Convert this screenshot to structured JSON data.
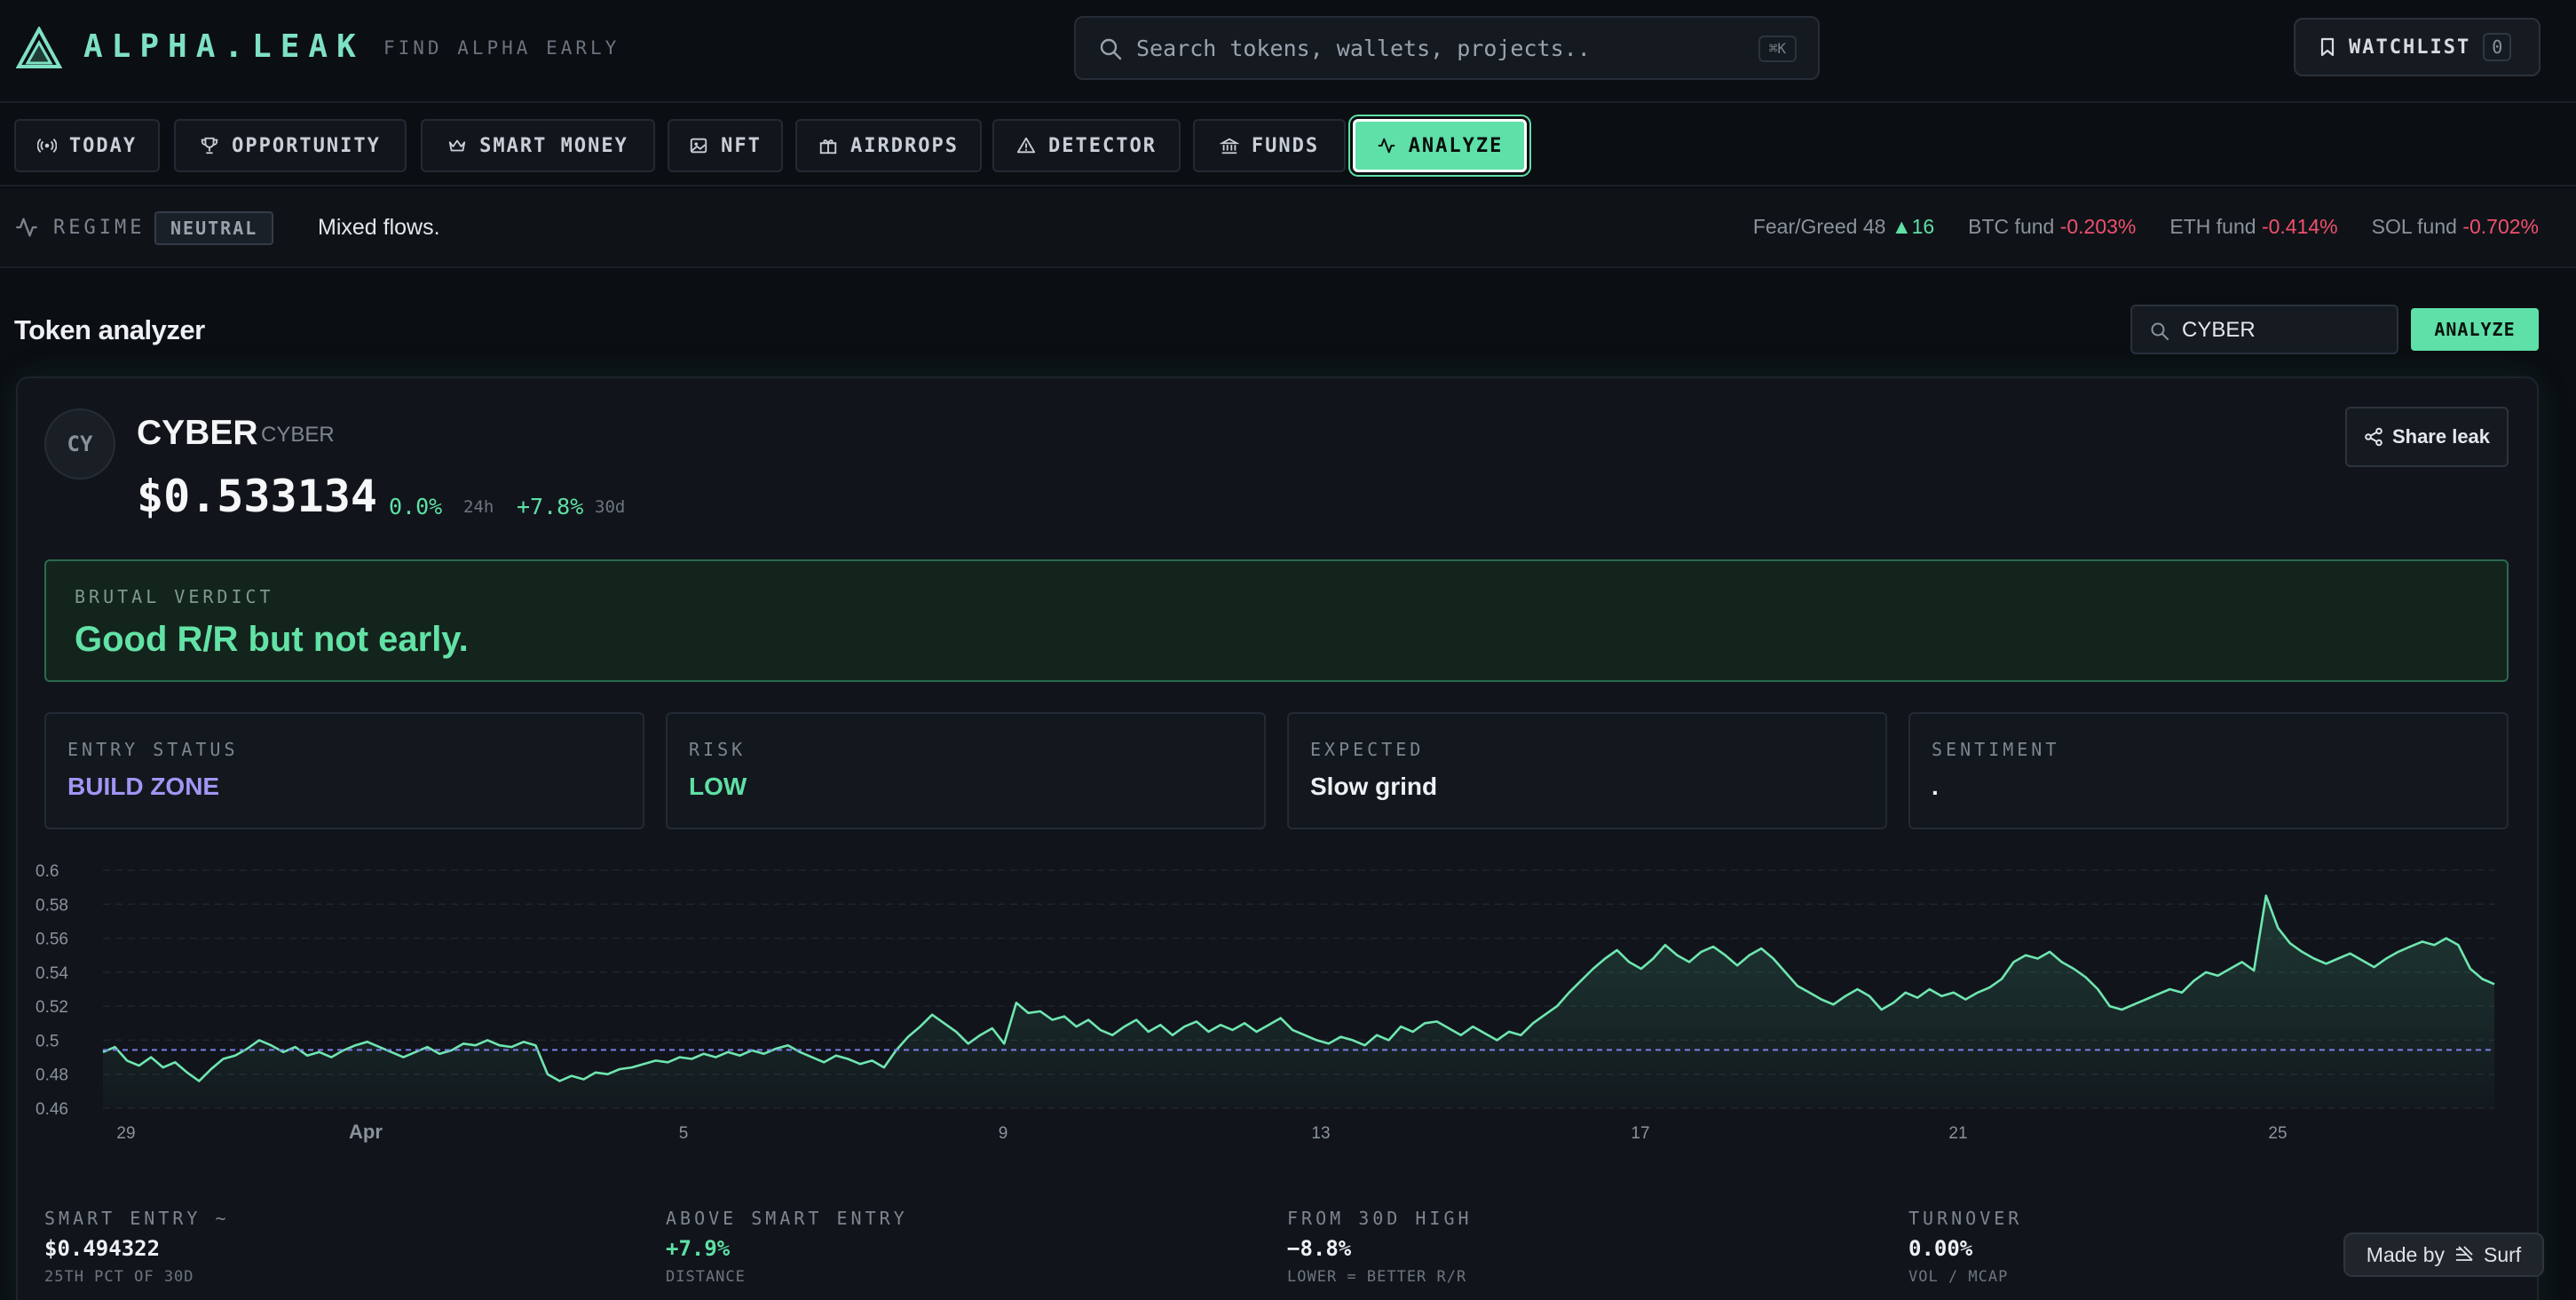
{
  "header": {
    "brand": "ALPHA.LEAK",
    "tagline": "FIND ALPHA EARLY",
    "search_placeholder": "Search tokens, wallets, projects..",
    "search_shortcut": "⌘K",
    "watchlist_label": "WATCHLIST",
    "watchlist_count": "0"
  },
  "nav": {
    "items": [
      {
        "label": "TODAY",
        "icon": "broadcast-icon"
      },
      {
        "label": "OPPORTUNITY",
        "icon": "trophy-icon"
      },
      {
        "label": "SMART MONEY",
        "icon": "crown-icon"
      },
      {
        "label": "NFT",
        "icon": "image-icon"
      },
      {
        "label": "AIRDROPS",
        "icon": "gift-icon"
      },
      {
        "label": "DETECTOR",
        "icon": "alert-triangle-icon"
      },
      {
        "label": "FUNDS",
        "icon": "bank-icon"
      },
      {
        "label": "ANALYZE",
        "icon": "activity-icon",
        "active": true
      }
    ]
  },
  "regime": {
    "label": "REGIME",
    "badge": "NEUTRAL",
    "text": "Mixed flows.",
    "fear_greed_label": "Fear/Greed 48",
    "fear_greed_delta": "▲16",
    "btc_label": "BTC fund",
    "btc_value": "-0.203%",
    "eth_label": "ETH fund",
    "eth_value": "-0.414%",
    "sol_label": "SOL fund",
    "sol_value": "-0.702%"
  },
  "analyzer": {
    "title": "Token analyzer",
    "input_value": "CYBER",
    "button_label": "ANALYZE"
  },
  "token": {
    "avatar": "CY",
    "name": "CYBER",
    "symbol": "CYBER",
    "price": "$0.533134",
    "change_24h": "0.0%",
    "change_24h_label": "24h",
    "change_30d": "+7.8%",
    "change_30d_label": "30d",
    "share_label": "Share leak"
  },
  "verdict": {
    "label": "BRUTAL VERDICT",
    "text": "Good R/R but not early."
  },
  "stats": [
    {
      "label": "ENTRY STATUS",
      "value": "BUILD ZONE",
      "tone": "purple"
    },
    {
      "label": "RISK",
      "value": "LOW",
      "tone": "green"
    },
    {
      "label": "EXPECTED",
      "value": "Slow grind",
      "tone": "default"
    },
    {
      "label": "SENTIMENT",
      "value": ".",
      "tone": "default"
    }
  ],
  "bottom_stats": [
    {
      "label": "SMART ENTRY ~",
      "value": "$0.494322",
      "sub": "25TH PCT OF 30D",
      "tone": "default"
    },
    {
      "label": "ABOVE SMART ENTRY",
      "value": "+7.9%",
      "sub": "DISTANCE",
      "tone": "green"
    },
    {
      "label": "FROM 30D HIGH",
      "value": "−8.8%",
      "sub": "LOWER = BETTER R/R",
      "tone": "default"
    },
    {
      "label": "TURNOVER",
      "value": "0.00%",
      "sub": "VOL / MCAP",
      "tone": "default"
    }
  ],
  "made_by": {
    "label": "Made by",
    "brand": "Surf"
  },
  "colors": {
    "accent": "#5ee0a8",
    "negative": "#f0506e",
    "purple": "#a195f5"
  },
  "chart_data": {
    "type": "area",
    "ylim": [
      0.46,
      0.6
    ],
    "y_ticks": [
      0.6,
      0.58,
      0.56,
      0.54,
      0.52,
      0.5,
      0.48,
      0.46
    ],
    "x_ticks": [
      "29",
      "Apr",
      "5",
      "9",
      "13",
      "17",
      "21",
      "25"
    ],
    "reference_line": 0.4943,
    "series": [
      {
        "x_start": "Mar 28",
        "x_end": "Apr 27",
        "values": [
          0.493,
          0.496,
          0.488,
          0.485,
          0.49,
          0.484,
          0.487,
          0.481,
          0.476,
          0.483,
          0.489,
          0.491,
          0.495,
          0.5,
          0.497,
          0.493,
          0.496,
          0.491,
          0.493,
          0.49,
          0.494,
          0.497,
          0.499,
          0.496,
          0.493,
          0.49,
          0.493,
          0.496,
          0.492,
          0.494,
          0.498,
          0.497,
          0.5,
          0.497,
          0.496,
          0.499,
          0.497,
          0.48,
          0.476,
          0.479,
          0.477,
          0.481,
          0.48,
          0.483,
          0.484,
          0.486,
          0.488,
          0.487,
          0.49,
          0.489,
          0.492,
          0.49,
          0.493,
          0.491,
          0.494,
          0.492,
          0.495,
          0.497,
          0.493,
          0.49,
          0.487,
          0.491,
          0.489,
          0.486,
          0.488,
          0.484,
          0.494,
          0.502,
          0.508,
          0.515,
          0.51,
          0.505,
          0.498,
          0.503,
          0.507,
          0.498,
          0.522,
          0.516,
          0.517,
          0.512,
          0.514,
          0.508,
          0.512,
          0.506,
          0.503,
          0.508,
          0.512,
          0.505,
          0.509,
          0.503,
          0.508,
          0.511,
          0.505,
          0.509,
          0.506,
          0.51,
          0.505,
          0.509,
          0.513,
          0.506,
          0.503,
          0.5,
          0.498,
          0.502,
          0.5,
          0.497,
          0.503,
          0.5,
          0.508,
          0.505,
          0.51,
          0.511,
          0.507,
          0.503,
          0.508,
          0.504,
          0.5,
          0.505,
          0.503,
          0.51,
          0.515,
          0.52,
          0.528,
          0.535,
          0.542,
          0.548,
          0.553,
          0.546,
          0.542,
          0.548,
          0.556,
          0.55,
          0.546,
          0.552,
          0.555,
          0.55,
          0.544,
          0.55,
          0.554,
          0.548,
          0.54,
          0.532,
          0.528,
          0.524,
          0.521,
          0.526,
          0.53,
          0.526,
          0.518,
          0.522,
          0.528,
          0.525,
          0.53,
          0.526,
          0.528,
          0.524,
          0.528,
          0.531,
          0.536,
          0.546,
          0.55,
          0.548,
          0.552,
          0.546,
          0.542,
          0.537,
          0.53,
          0.52,
          0.518,
          0.521,
          0.524,
          0.527,
          0.53,
          0.528,
          0.535,
          0.54,
          0.538,
          0.542,
          0.546,
          0.541,
          0.585,
          0.566,
          0.557,
          0.552,
          0.548,
          0.545,
          0.548,
          0.551,
          0.547,
          0.543,
          0.548,
          0.552,
          0.555,
          0.558,
          0.556,
          0.56,
          0.556,
          0.542,
          0.536,
          0.533
        ]
      }
    ]
  }
}
